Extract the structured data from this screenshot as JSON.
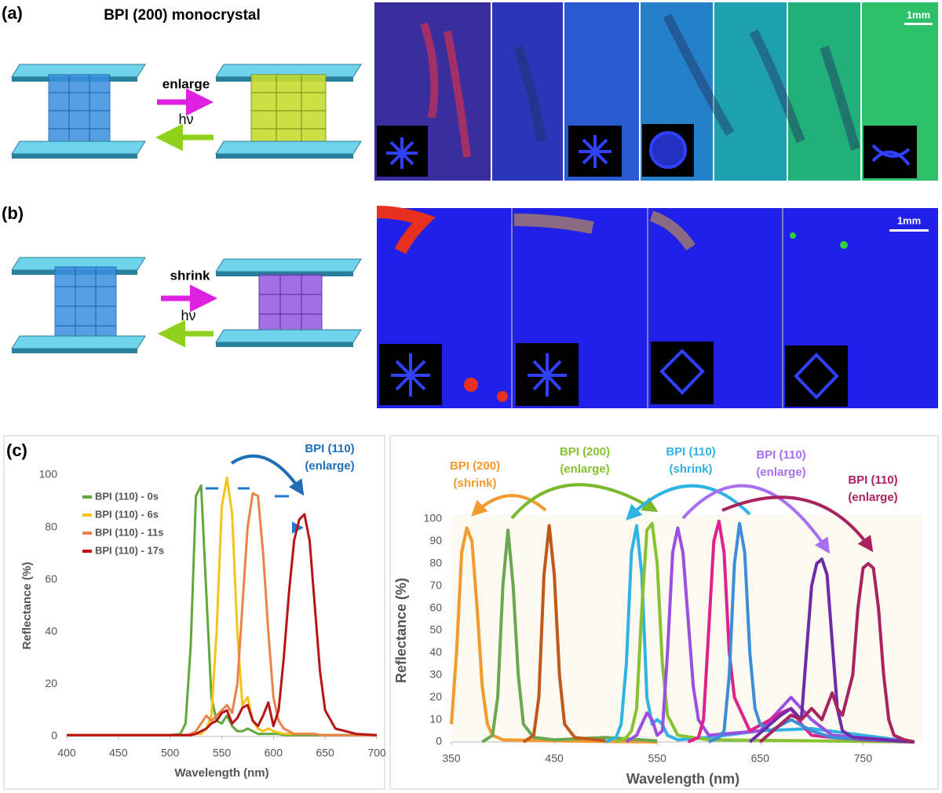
{
  "figure": {
    "a": {
      "label": "(a)",
      "title": "BPI (200) monocrystal",
      "forward": "enlarge",
      "light": "hν",
      "scale": "1mm"
    },
    "b": {
      "label": "(b)",
      "forward": "shrink",
      "light": "hν",
      "scale": "1mm"
    },
    "c": {
      "label": "(c)"
    }
  },
  "chart_data": [
    {
      "type": "line",
      "x_label": "Wavelength (nm)",
      "y_label": "Reflectance (%)",
      "annotations": [
        "BPI (110)",
        "(enlarge)"
      ],
      "xlim": [
        400,
        700
      ],
      "xticks": [
        400,
        450,
        500,
        550,
        600,
        650,
        700
      ],
      "ylim": [
        0,
        100
      ],
      "yticks": [
        0,
        20,
        40,
        60,
        80,
        100
      ],
      "grid": false,
      "legend": "upper left",
      "x": [
        400,
        450,
        500,
        510,
        515,
        520,
        525,
        530,
        535,
        540,
        545,
        550,
        555,
        560,
        565,
        570,
        575,
        580,
        585,
        590,
        595,
        600,
        605,
        610,
        615,
        620,
        625,
        630,
        635,
        640,
        645,
        650,
        660,
        680,
        700
      ],
      "series": [
        {
          "name": "BPI (110) - 0s",
          "color": "#5fa83a",
          "values": [
            0.5,
            0.5,
            0.5,
            1,
            5,
            35,
            92,
            96,
            55,
            15,
            6,
            5,
            8,
            4,
            2,
            2,
            3,
            2,
            1,
            1,
            1,
            1,
            1,
            0.5,
            0.5,
            0.5,
            0.5,
            0.5,
            0.5,
            0.5,
            0.5,
            0.5,
            0.5,
            0.5,
            0.5
          ]
        },
        {
          "name": "BPI (110) - 6s",
          "color": "#f7c21a",
          "values": [
            0.5,
            0.5,
            0.5,
            0.5,
            0.5,
            0.5,
            1,
            1,
            3,
            8,
            40,
            88,
            99,
            85,
            40,
            12,
            15,
            6,
            3,
            2,
            3,
            2,
            1.5,
            1,
            1,
            1,
            1,
            1,
            1,
            1,
            0.5,
            0.5,
            0.5,
            0.5,
            0.5
          ]
        },
        {
          "name": "BPI (110) - 11s",
          "color": "#e9834a",
          "values": [
            0.5,
            0.5,
            0.5,
            0.5,
            0.5,
            1,
            2,
            5,
            8,
            6,
            8,
            10,
            12,
            9,
            20,
            50,
            80,
            93,
            92,
            70,
            40,
            15,
            6,
            3,
            2,
            1,
            1,
            1,
            1,
            1,
            0.5,
            0.5,
            0.5,
            0.5,
            0.5
          ]
        },
        {
          "name": "BPI (110) - 17s",
          "color": "#b81414",
          "values": [
            0.5,
            0.5,
            0.5,
            0.5,
            0.5,
            0.5,
            1,
            2,
            3,
            5,
            6,
            9,
            10,
            5,
            7,
            11,
            12,
            6,
            4,
            8,
            13,
            4,
            10,
            30,
            55,
            75,
            83,
            85,
            75,
            50,
            25,
            10,
            3,
            1,
            0.5
          ]
        }
      ]
    },
    {
      "type": "line",
      "x_label": "Wavelength (nm)",
      "y_label": "Reflectance (%)",
      "annotations": [
        "BPI (200)",
        "(shrink)",
        "BPI (200)",
        "(enlarge)",
        "BPI (110)",
        "(shrink)",
        "BPI (110)",
        "(enlarge)",
        "BPI (110)",
        "(enlarge)"
      ],
      "xlim": [
        350,
        800
      ],
      "xticks": [
        350,
        450,
        550,
        650,
        750
      ],
      "ylim": [
        0,
        100
      ],
      "yticks": [
        0,
        10,
        20,
        30,
        40,
        50,
        60,
        70,
        80,
        90,
        100
      ],
      "grid": false,
      "series": [
        {
          "color": "#f29a2e",
          "x": [
            350,
            355,
            360,
            365,
            370,
            375,
            380,
            385,
            390,
            400,
            450,
            550
          ],
          "values": [
            8,
            40,
            85,
            96,
            90,
            60,
            25,
            8,
            3,
            1,
            0.5,
            0
          ]
        },
        {
          "color": "#6aa84f",
          "x": [
            380,
            390,
            395,
            400,
            405,
            410,
            415,
            420,
            430,
            450,
            500,
            550
          ],
          "values": [
            0,
            3,
            20,
            70,
            95,
            70,
            30,
            8,
            2,
            1,
            2,
            0.5
          ]
        },
        {
          "color": "#c05a1a",
          "x": [
            420,
            430,
            435,
            440,
            445,
            450,
            455,
            460,
            470,
            500
          ],
          "values": [
            0,
            3,
            20,
            75,
            97,
            75,
            30,
            8,
            2,
            0.5
          ]
        },
        {
          "color": "#2fb2e4",
          "x": [
            500,
            510,
            515,
            520,
            525,
            530,
            535,
            540,
            545,
            550,
            555,
            560,
            570,
            600,
            650,
            700,
            800
          ],
          "values": [
            0,
            2,
            8,
            35,
            85,
            97,
            75,
            20,
            8,
            10,
            8,
            3,
            1,
            2,
            5,
            6,
            0
          ]
        },
        {
          "color": "#86c232",
          "x": [
            510,
            520,
            525,
            530,
            535,
            540,
            545,
            550,
            555,
            560,
            570,
            600,
            800
          ],
          "values": [
            0,
            2,
            5,
            15,
            60,
            95,
            98,
            80,
            35,
            12,
            3,
            1,
            0
          ]
        },
        {
          "color": "#9a4fe0",
          "x": [
            520,
            530,
            540,
            545,
            550,
            555,
            560,
            565,
            570,
            575,
            580,
            585,
            590,
            600,
            650,
            680,
            700,
            720,
            800
          ],
          "values": [
            0,
            3,
            13,
            10,
            3,
            5,
            40,
            85,
            96,
            85,
            55,
            25,
            10,
            3,
            5,
            20,
            10,
            3,
            0
          ]
        },
        {
          "color": "#e0208c",
          "x": [
            580,
            590,
            595,
            600,
            605,
            610,
            615,
            620,
            625,
            630,
            640,
            660,
            670,
            680,
            690,
            700,
            720,
            750,
            800
          ],
          "values": [
            0,
            2,
            10,
            50,
            90,
            99,
            85,
            40,
            20,
            15,
            5,
            10,
            13,
            15,
            8,
            3,
            2,
            1,
            0
          ]
        },
        {
          "color": "#3c8ed8",
          "x": [
            600,
            610,
            615,
            620,
            625,
            630,
            635,
            640,
            645,
            650,
            660,
            680,
            700,
            720,
            800
          ],
          "values": [
            0,
            2,
            5,
            30,
            80,
            98,
            85,
            40,
            15,
            8,
            5,
            10,
            5,
            2,
            0
          ]
        },
        {
          "color": "#6f2aa8",
          "x": [
            640,
            660,
            670,
            680,
            690,
            695,
            700,
            705,
            710,
            715,
            720,
            725,
            730,
            740,
            800
          ],
          "values": [
            0,
            8,
            12,
            15,
            10,
            40,
            70,
            80,
            82,
            75,
            45,
            15,
            5,
            2,
            0
          ]
        },
        {
          "color": "#a8235f",
          "x": [
            650,
            670,
            680,
            690,
            700,
            710,
            720,
            725,
            730,
            740,
            745,
            750,
            755,
            760,
            765,
            770,
            775,
            780,
            790,
            800
          ],
          "values": [
            0,
            8,
            12,
            10,
            15,
            10,
            22,
            15,
            12,
            30,
            60,
            78,
            80,
            78,
            60,
            30,
            10,
            3,
            1,
            0
          ]
        }
      ]
    }
  ]
}
